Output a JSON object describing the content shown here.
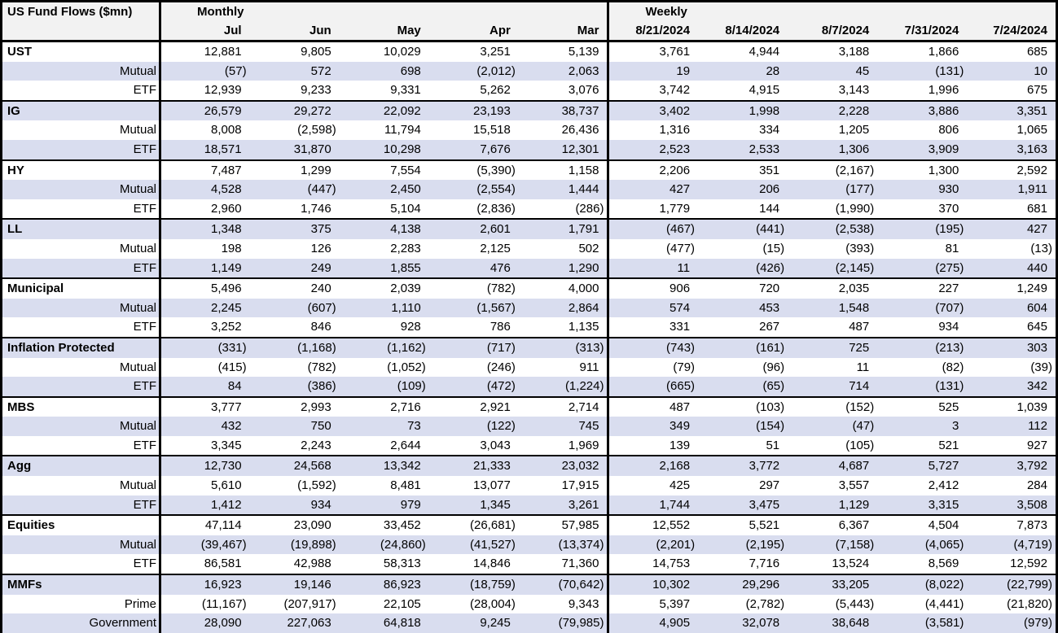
{
  "table": {
    "title": "US Fund Flows ($mn)",
    "monthly_label": "Monthly",
    "weekly_label": "Weekly",
    "monthly_columns": [
      "Jul",
      "Jun",
      "May",
      "Apr",
      "Mar"
    ],
    "weekly_columns": [
      "8/21/2024",
      "8/14/2024",
      "8/7/2024",
      "7/31/2024",
      "7/24/2024"
    ],
    "colors": {
      "stripe": "#d9ddef",
      "header_bg": "#f2f2f2",
      "border": "#000000",
      "text": "#000000"
    },
    "sections": [
      {
        "label": "UST",
        "monthly": [
          "12,881",
          "9,805",
          "10,029",
          "3,251",
          "5,139"
        ],
        "weekly": [
          "3,761",
          "4,944",
          "3,188",
          "1,866",
          "685"
        ],
        "rows": [
          {
            "label": "Mutual",
            "monthly": [
              "(57)",
              "572",
              "698",
              "(2,012)",
              "2,063"
            ],
            "weekly": [
              "19",
              "28",
              "45",
              "(131)",
              "10"
            ]
          },
          {
            "label": "ETF",
            "monthly": [
              "12,939",
              "9,233",
              "9,331",
              "5,262",
              "3,076"
            ],
            "weekly": [
              "3,742",
              "4,915",
              "3,143",
              "1,996",
              "675"
            ]
          }
        ]
      },
      {
        "label": "IG",
        "monthly": [
          "26,579",
          "29,272",
          "22,092",
          "23,193",
          "38,737"
        ],
        "weekly": [
          "3,402",
          "1,998",
          "2,228",
          "3,886",
          "3,351"
        ],
        "rows": [
          {
            "label": "Mutual",
            "monthly": [
              "8,008",
              "(2,598)",
              "11,794",
              "15,518",
              "26,436"
            ],
            "weekly": [
              "1,316",
              "334",
              "1,205",
              "806",
              "1,065"
            ]
          },
          {
            "label": "ETF",
            "monthly": [
              "18,571",
              "31,870",
              "10,298",
              "7,676",
              "12,301"
            ],
            "weekly": [
              "2,523",
              "2,533",
              "1,306",
              "3,909",
              "3,163"
            ]
          }
        ]
      },
      {
        "label": "HY",
        "monthly": [
          "7,487",
          "1,299",
          "7,554",
          "(5,390)",
          "1,158"
        ],
        "weekly": [
          "2,206",
          "351",
          "(2,167)",
          "1,300",
          "2,592"
        ],
        "rows": [
          {
            "label": "Mutual",
            "monthly": [
              "4,528",
              "(447)",
              "2,450",
              "(2,554)",
              "1,444"
            ],
            "weekly": [
              "427",
              "206",
              "(177)",
              "930",
              "1,911"
            ]
          },
          {
            "label": "ETF",
            "monthly": [
              "2,960",
              "1,746",
              "5,104",
              "(2,836)",
              "(286)"
            ],
            "weekly": [
              "1,779",
              "144",
              "(1,990)",
              "370",
              "681"
            ]
          }
        ]
      },
      {
        "label": "LL",
        "monthly": [
          "1,348",
          "375",
          "4,138",
          "2,601",
          "1,791"
        ],
        "weekly": [
          "(467)",
          "(441)",
          "(2,538)",
          "(195)",
          "427"
        ],
        "rows": [
          {
            "label": "Mutual",
            "monthly": [
              "198",
              "126",
              "2,283",
              "2,125",
              "502"
            ],
            "weekly": [
              "(477)",
              "(15)",
              "(393)",
              "81",
              "(13)"
            ]
          },
          {
            "label": "ETF",
            "monthly": [
              "1,149",
              "249",
              "1,855",
              "476",
              "1,290"
            ],
            "weekly": [
              "11",
              "(426)",
              "(2,145)",
              "(275)",
              "440"
            ]
          }
        ]
      },
      {
        "label": "Municipal",
        "monthly": [
          "5,496",
          "240",
          "2,039",
          "(782)",
          "4,000"
        ],
        "weekly": [
          "906",
          "720",
          "2,035",
          "227",
          "1,249"
        ],
        "rows": [
          {
            "label": "Mutual",
            "monthly": [
              "2,245",
              "(607)",
              "1,110",
              "(1,567)",
              "2,864"
            ],
            "weekly": [
              "574",
              "453",
              "1,548",
              "(707)",
              "604"
            ]
          },
          {
            "label": "ETF",
            "monthly": [
              "3,252",
              "846",
              "928",
              "786",
              "1,135"
            ],
            "weekly": [
              "331",
              "267",
              "487",
              "934",
              "645"
            ]
          }
        ]
      },
      {
        "label": "Inflation Protected",
        "monthly": [
          "(331)",
          "(1,168)",
          "(1,162)",
          "(717)",
          "(313)"
        ],
        "weekly": [
          "(743)",
          "(161)",
          "725",
          "(213)",
          "303"
        ],
        "rows": [
          {
            "label": "Mutual",
            "monthly": [
              "(415)",
              "(782)",
              "(1,052)",
              "(246)",
              "911"
            ],
            "weekly": [
              "(79)",
              "(96)",
              "11",
              "(82)",
              "(39)"
            ]
          },
          {
            "label": "ETF",
            "monthly": [
              "84",
              "(386)",
              "(109)",
              "(472)",
              "(1,224)"
            ],
            "weekly": [
              "(665)",
              "(65)",
              "714",
              "(131)",
              "342"
            ]
          }
        ]
      },
      {
        "label": "MBS",
        "monthly": [
          "3,777",
          "2,993",
          "2,716",
          "2,921",
          "2,714"
        ],
        "weekly": [
          "487",
          "(103)",
          "(152)",
          "525",
          "1,039"
        ],
        "rows": [
          {
            "label": "Mutual",
            "monthly": [
              "432",
              "750",
              "73",
              "(122)",
              "745"
            ],
            "weekly": [
              "349",
              "(154)",
              "(47)",
              "3",
              "112"
            ]
          },
          {
            "label": "ETF",
            "monthly": [
              "3,345",
              "2,243",
              "2,644",
              "3,043",
              "1,969"
            ],
            "weekly": [
              "139",
              "51",
              "(105)",
              "521",
              "927"
            ]
          }
        ]
      },
      {
        "label": "Agg",
        "monthly": [
          "12,730",
          "24,568",
          "13,342",
          "21,333",
          "23,032"
        ],
        "weekly": [
          "2,168",
          "3,772",
          "4,687",
          "5,727",
          "3,792"
        ],
        "rows": [
          {
            "label": "Mutual",
            "monthly": [
              "5,610",
              "(1,592)",
              "8,481",
              "13,077",
              "17,915"
            ],
            "weekly": [
              "425",
              "297",
              "3,557",
              "2,412",
              "284"
            ]
          },
          {
            "label": "ETF",
            "monthly": [
              "1,412",
              "934",
              "979",
              "1,345",
              "3,261"
            ],
            "weekly": [
              "1,744",
              "3,475",
              "1,129",
              "3,315",
              "3,508"
            ]
          }
        ]
      },
      {
        "label": "Equities",
        "monthly": [
          "47,114",
          "23,090",
          "33,452",
          "(26,681)",
          "57,985"
        ],
        "weekly": [
          "12,552",
          "5,521",
          "6,367",
          "4,504",
          "7,873"
        ],
        "rows": [
          {
            "label": "Mutual",
            "monthly": [
              "(39,467)",
              "(19,898)",
              "(24,860)",
              "(41,527)",
              "(13,374)"
            ],
            "weekly": [
              "(2,201)",
              "(2,195)",
              "(7,158)",
              "(4,065)",
              "(4,719)"
            ]
          },
          {
            "label": "ETF",
            "monthly": [
              "86,581",
              "42,988",
              "58,313",
              "14,846",
              "71,360"
            ],
            "weekly": [
              "14,753",
              "7,716",
              "13,524",
              "8,569",
              "12,592"
            ]
          }
        ]
      },
      {
        "label": "MMFs",
        "monthly": [
          "16,923",
          "19,146",
          "86,923",
          "(18,759)",
          "(70,642)"
        ],
        "weekly": [
          "10,302",
          "29,296",
          "33,205",
          "(8,022)",
          "(22,799)"
        ],
        "rows": [
          {
            "label": "Prime",
            "monthly": [
              "(11,167)",
              "(207,917)",
              "22,105",
              "(28,004)",
              "9,343"
            ],
            "weekly": [
              "5,397",
              "(2,782)",
              "(5,443)",
              "(4,441)",
              "(21,820)"
            ]
          },
          {
            "label": "Government",
            "monthly": [
              "28,090",
              "227,063",
              "64,818",
              "9,245",
              "(79,985)"
            ],
            "weekly": [
              "4,905",
              "32,078",
              "38,648",
              "(3,581)",
              "(979)"
            ]
          }
        ]
      }
    ]
  }
}
